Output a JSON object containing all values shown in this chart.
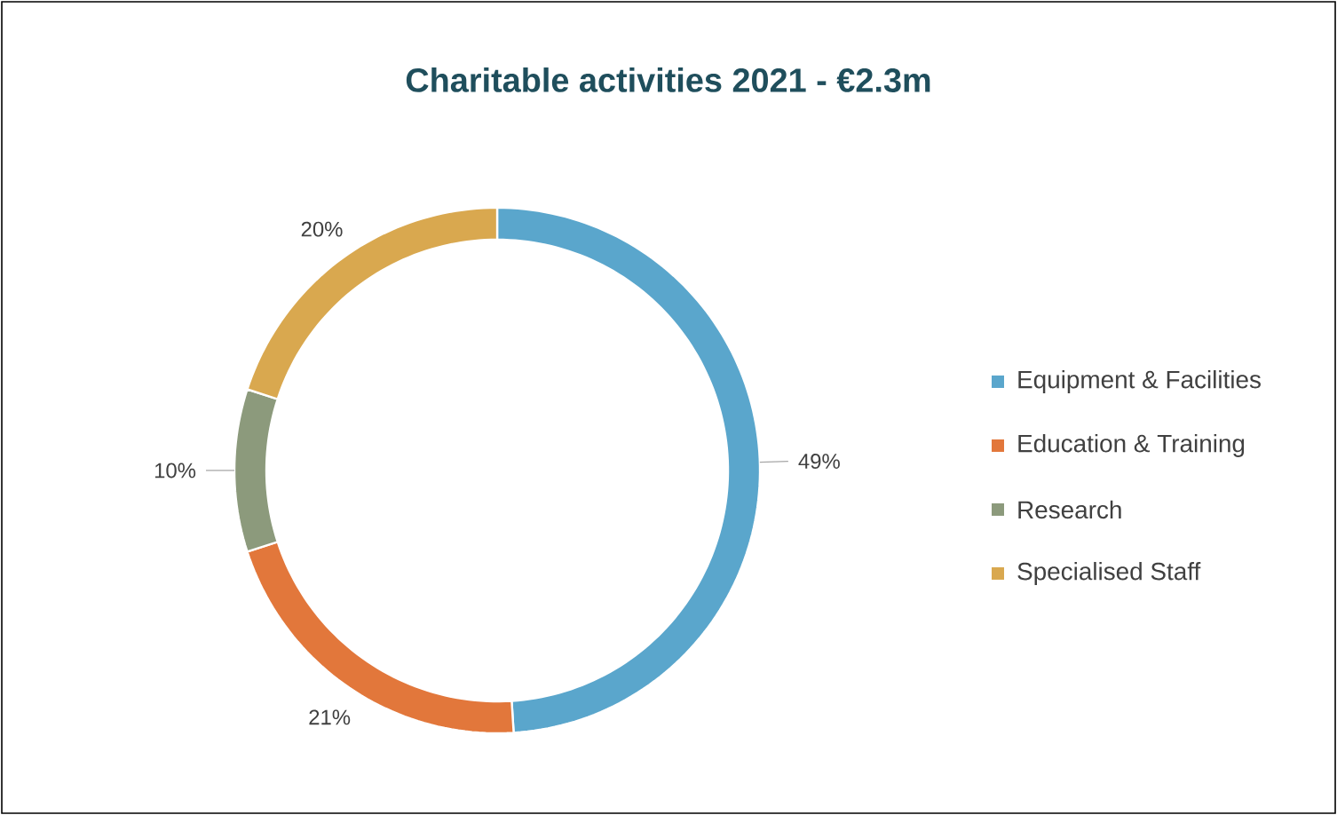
{
  "chart_data": {
    "type": "donut",
    "title": "Charitable activities 2021 - €2.3m",
    "categories": [
      "Equipment & Facilities",
      "Education & Training",
      "Research",
      "Specialised Staff"
    ],
    "values": [
      49,
      21,
      10,
      20
    ],
    "value_labels": [
      "49%",
      "21%",
      "10%",
      "20%"
    ],
    "colors": [
      "#5aa6cc",
      "#e2773b",
      "#8c9a7c",
      "#d9a84f"
    ],
    "legend": "right"
  }
}
